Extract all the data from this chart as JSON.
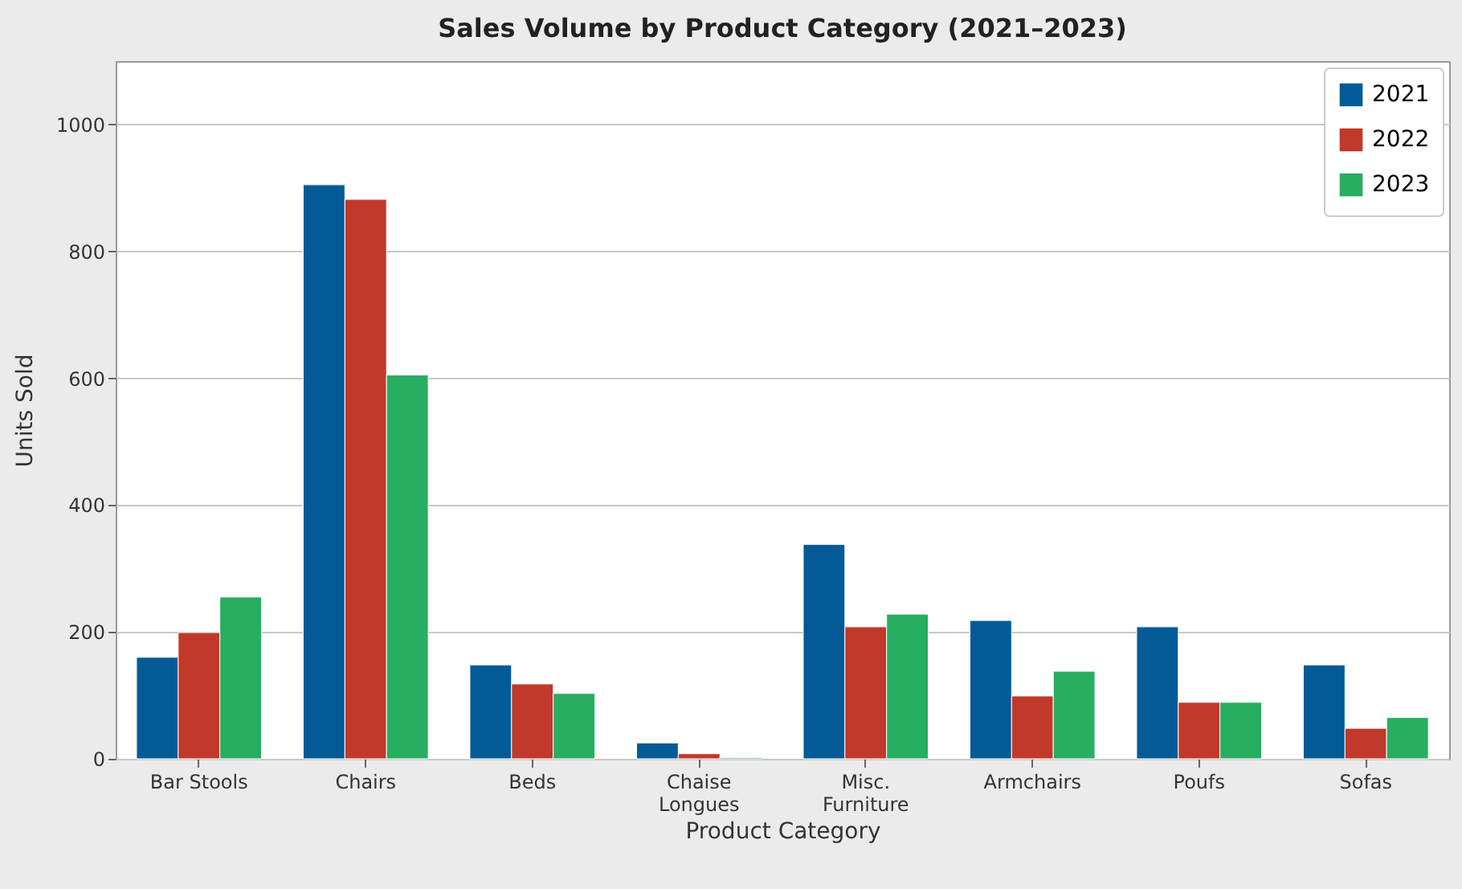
{
  "chart_data": {
    "type": "bar",
    "title": "Sales Volume by Product Category (2021–2023)",
    "xlabel": "Product Category",
    "ylabel": "Units Sold",
    "categories": [
      "Bar Stools",
      "Chairs",
      "Beds",
      "Chaise\nLongues",
      "Misc.\nFurniture",
      "Armchairs",
      "Poufs",
      "Sofas"
    ],
    "series": [
      {
        "name": "2021",
        "color": "#025b97",
        "values": [
          160,
          905,
          148,
          25,
          338,
          218,
          208,
          148
        ]
      },
      {
        "name": "2022",
        "color": "#c0392b",
        "values": [
          199,
          882,
          118,
          8,
          208,
          99,
          89,
          48
        ]
      },
      {
        "name": "2023",
        "color": "#27ae60",
        "values": [
          255,
          605,
          103,
          2,
          228,
          138,
          89,
          65
        ]
      }
    ],
    "ylim": [
      0,
      1100
    ],
    "yticks": [
      0,
      200,
      400,
      600,
      800,
      1000
    ],
    "grid": "y",
    "legend": "top right"
  }
}
